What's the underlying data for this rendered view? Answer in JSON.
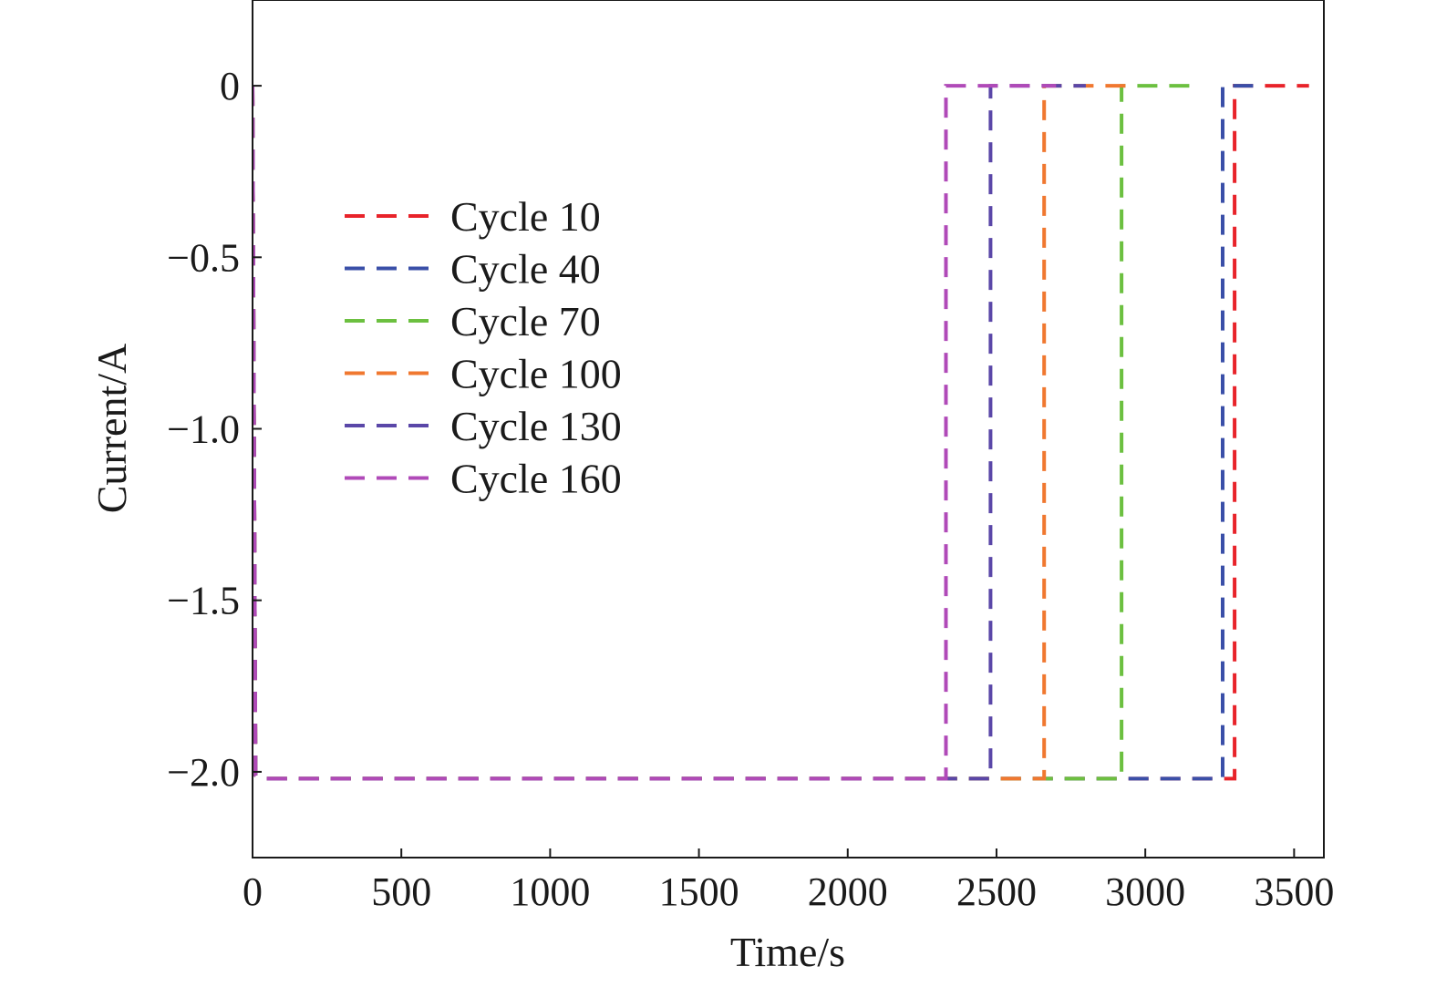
{
  "chart_data": {
    "type": "line",
    "xlabel": "Time/s",
    "ylabel": "Current/A",
    "xlim": [
      0,
      3600
    ],
    "ylim": [
      -2.25,
      0.25
    ],
    "xticks": [
      0,
      500,
      1000,
      1500,
      2000,
      2500,
      3000,
      3500
    ],
    "xtick_labels": [
      "0",
      "500",
      "1000",
      "1500",
      "2000",
      "2500",
      "3000",
      "3500"
    ],
    "yticks": [
      0,
      -0.5,
      -1.0,
      -1.5,
      -2.0
    ],
    "ytick_labels": [
      "0",
      "−0.5",
      "−1.0",
      "−1.5",
      "−2.0"
    ],
    "grid": false,
    "legend_position": "upper-left",
    "line_style": "dashed",
    "series": [
      {
        "name": "Cycle 10",
        "color": "#e8232a",
        "x": [
          0,
          10,
          30,
          3300,
          3300,
          3550
        ],
        "y": [
          0,
          -2.01,
          -2.02,
          -2.02,
          0,
          0
        ]
      },
      {
        "name": "Cycle 40",
        "color": "#3a4fa8",
        "x": [
          0,
          10,
          30,
          3260,
          3260,
          3400
        ],
        "y": [
          0,
          -2.01,
          -2.02,
          -2.02,
          0,
          0
        ]
      },
      {
        "name": "Cycle 70",
        "color": "#6cc040",
        "x": [
          0,
          10,
          30,
          2920,
          2920,
          3150
        ],
        "y": [
          0,
          -2.01,
          -2.02,
          -2.02,
          0,
          0
        ]
      },
      {
        "name": "Cycle 100",
        "color": "#f07830",
        "x": [
          0,
          10,
          30,
          2660,
          2660,
          2950
        ],
        "y": [
          0,
          -2.01,
          -2.02,
          -2.02,
          0,
          0
        ]
      },
      {
        "name": "Cycle 130",
        "color": "#5a47a8",
        "x": [
          0,
          10,
          30,
          2480,
          2480,
          2800
        ],
        "y": [
          0,
          -2.01,
          -2.02,
          -2.02,
          0,
          0
        ]
      },
      {
        "name": "Cycle 160",
        "color": "#b04ab8",
        "x": [
          0,
          10,
          30,
          2330,
          2330,
          2700
        ],
        "y": [
          0,
          -2.01,
          -2.02,
          -2.02,
          0,
          0
        ]
      }
    ]
  }
}
